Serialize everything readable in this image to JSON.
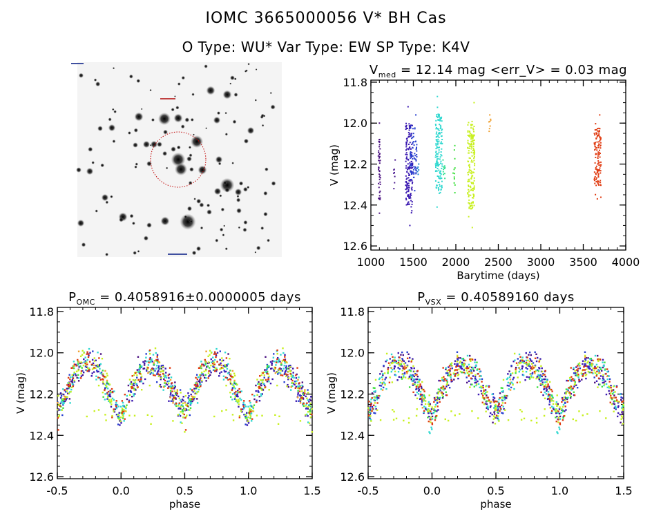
{
  "header": {
    "title": "IOMC 3665000056    V* BH Cas",
    "subtitle": "O Type: WU*   Var Type: EW   SP Type: K4V"
  },
  "chart_data": [
    {
      "type": "image",
      "description_label": "finder-chart",
      "circle_color": "#c00000"
    },
    {
      "type": "scatter",
      "title_main": "V",
      "title_sub": "med",
      "title_rest": " = 12.14 mag <err_V> = 0.03 mag",
      "xlabel": "Barytime (days)",
      "ylabel": "V (mag)",
      "xlim": [
        1000,
        4000
      ],
      "ylim": [
        11.79,
        12.62
      ],
      "y_inverted": true,
      "xticks": [
        1000,
        1500,
        2000,
        2500,
        3000,
        3500,
        4000
      ],
      "yticks": [
        "11.8",
        "12.0",
        "12.2",
        "12.4",
        "12.6"
      ],
      "clusters": [
        {
          "x": 1100,
          "v_min": 12.0,
          "v_max": 12.44,
          "color": "#4a1080",
          "n": 45
        },
        {
          "x": 1280,
          "v_min": 12.18,
          "v_max": 12.32,
          "color": "#4a1890",
          "n": 8
        },
        {
          "x": 1450,
          "v_min": 11.92,
          "v_max": 12.5,
          "color": "#3a18b0",
          "n": 160
        },
        {
          "x": 1500,
          "v_min": 11.96,
          "v_max": 12.33,
          "color": "#2840d0",
          "n": 70
        },
        {
          "x": 1560,
          "v_min": 12.2,
          "v_max": 12.25,
          "color": "#2080d0",
          "n": 6
        },
        {
          "x": 1800,
          "v_min": 11.87,
          "v_max": 12.41,
          "color": "#30d8d0",
          "n": 150
        },
        {
          "x": 1860,
          "v_min": 12.18,
          "v_max": 12.27,
          "color": "#30e090",
          "n": 10
        },
        {
          "x": 1980,
          "v_min": 12.11,
          "v_max": 12.34,
          "color": "#40e040",
          "n": 12
        },
        {
          "x": 2180,
          "v_min": 11.9,
          "v_max": 12.51,
          "color": "#c8f020",
          "n": 170
        },
        {
          "x": 2400,
          "v_min": 11.96,
          "v_max": 12.04,
          "color": "#f0a030",
          "n": 8
        },
        {
          "x": 3670,
          "v_min": 11.96,
          "v_max": 12.37,
          "color": "#e03a10",
          "n": 120
        }
      ]
    },
    {
      "type": "scatter",
      "title_main": "P",
      "title_sub": "OMC",
      "title_rest": " = 0.4058916±0.0000005 days",
      "xlabel": "phase",
      "ylabel": "V (mag)",
      "xlim": [
        -0.5,
        1.5
      ],
      "ylim": [
        11.78,
        12.61
      ],
      "y_inverted": true,
      "xticks": [
        "-0.5",
        "0.0",
        "0.5",
        "1.0",
        "1.5"
      ],
      "yticks": [
        "11.8",
        "12.0",
        "12.2",
        "12.4",
        "12.6"
      ],
      "light_curve": {
        "phase": [
          0.0,
          0.05,
          0.1,
          0.15,
          0.2,
          0.25,
          0.3,
          0.35,
          0.4,
          0.45,
          0.5,
          0.55,
          0.6,
          0.65,
          0.7,
          0.75,
          0.8,
          0.85,
          0.9,
          0.95
        ],
        "V": [
          12.32,
          12.22,
          12.15,
          12.1,
          12.07,
          12.06,
          12.08,
          12.12,
          12.18,
          12.24,
          12.28,
          12.22,
          12.15,
          12.09,
          12.06,
          12.05,
          12.07,
          12.11,
          12.18,
          12.26
        ]
      },
      "series_colors": [
        "#4a1080",
        "#3a18b0",
        "#2840d0",
        "#30d8d0",
        "#40e040",
        "#c8f020",
        "#f0a030",
        "#e03a10"
      ]
    },
    {
      "type": "scatter",
      "title_main": "P",
      "title_sub": "VSX",
      "title_rest": " = 0.40589160 days",
      "xlabel": "phase",
      "ylabel": "V (mag)",
      "xlim": [
        -0.5,
        1.5
      ],
      "ylim": [
        11.78,
        12.61
      ],
      "y_inverted": true,
      "xticks": [
        "-0.5",
        "0.0",
        "0.5",
        "1.0",
        "1.5"
      ],
      "yticks": [
        "11.8",
        "12.0",
        "12.2",
        "12.4",
        "12.6"
      ],
      "light_curve": {
        "phase": [
          0.0,
          0.05,
          0.1,
          0.15,
          0.2,
          0.25,
          0.3,
          0.35,
          0.4,
          0.45,
          0.5,
          0.55,
          0.6,
          0.65,
          0.7,
          0.75,
          0.8,
          0.85,
          0.9,
          0.95
        ],
        "V": [
          12.32,
          12.22,
          12.15,
          12.1,
          12.07,
          12.06,
          12.08,
          12.12,
          12.18,
          12.24,
          12.28,
          12.22,
          12.15,
          12.09,
          12.06,
          12.05,
          12.07,
          12.11,
          12.18,
          12.26
        ]
      },
      "series_colors": [
        "#4a1080",
        "#3a18b0",
        "#2840d0",
        "#30d8d0",
        "#40e040",
        "#c8f020",
        "#f0a030",
        "#e03a10"
      ]
    }
  ]
}
